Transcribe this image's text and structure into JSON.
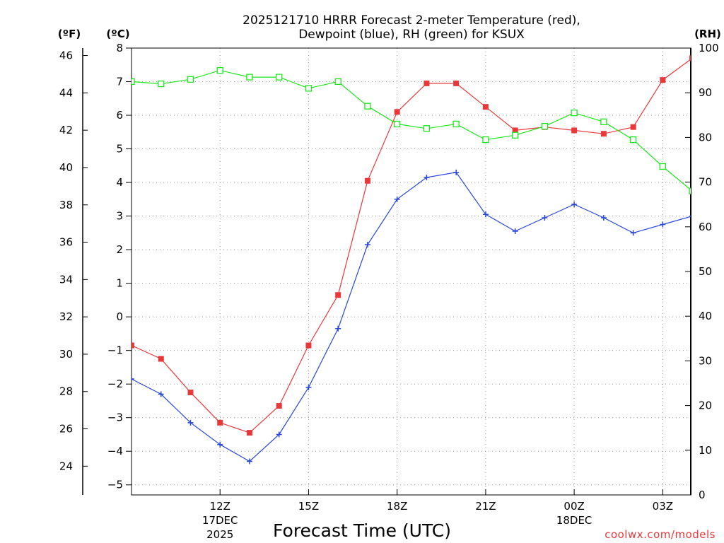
{
  "chart_data": {
    "type": "line",
    "title_line1": "2025121710 HRRR Forecast 2-meter Temperature (red),",
    "title_line2": "Dewpoint (blue), RH (green) for KSUX",
    "xlabel": "Forecast Time (UTC)",
    "unit_f": "(ºF)",
    "unit_c": "(ºC)",
    "unit_rh": "(RH)",
    "credit": "coolwx.com/models",
    "x_range": [
      9,
      27.95
    ],
    "y_c_range": [
      -5.3,
      8
    ],
    "y_rh_range": [
      0,
      100
    ],
    "c_ticks": [
      -5,
      -4,
      -3,
      -2,
      -1,
      0,
      1,
      2,
      3,
      4,
      5,
      6,
      7,
      8
    ],
    "c_tick_labels": [
      "−5",
      "−4",
      "−3",
      "−2",
      "−1",
      "0",
      "1",
      "2",
      "3",
      "4",
      "5",
      "6",
      "7",
      "8"
    ],
    "f_ticks": [
      24,
      26,
      28,
      30,
      32,
      34,
      36,
      38,
      40,
      42,
      44,
      46
    ],
    "f_tick_labels": [
      "24",
      "26",
      "28",
      "30",
      "32",
      "34",
      "36",
      "38",
      "40",
      "42",
      "44",
      "46"
    ],
    "rh_ticks": [
      0,
      10,
      20,
      30,
      40,
      50,
      60,
      70,
      80,
      90,
      100
    ],
    "rh_tick_labels": [
      "0",
      "10",
      "20",
      "30",
      "40",
      "50",
      "60",
      "70",
      "80",
      "90",
      "100"
    ],
    "x_ticks": [
      {
        "hour": 12,
        "label": "12Z",
        "sub1": "17DEC",
        "sub2": "2025"
      },
      {
        "hour": 15,
        "label": "15Z",
        "sub1": "",
        "sub2": ""
      },
      {
        "hour": 18,
        "label": "18Z",
        "sub1": "",
        "sub2": ""
      },
      {
        "hour": 21,
        "label": "21Z",
        "sub1": "",
        "sub2": ""
      },
      {
        "hour": 24,
        "label": "00Z",
        "sub1": "18DEC",
        "sub2": ""
      },
      {
        "hour": 27,
        "label": "03Z",
        "sub1": "",
        "sub2": ""
      }
    ],
    "grid": true,
    "hours": [
      9,
      10,
      11,
      12,
      13,
      14,
      15,
      16,
      17,
      18,
      19,
      20,
      21,
      22,
      23,
      24,
      25,
      26,
      27,
      28
    ],
    "series": [
      {
        "name": "Temperature",
        "unit": "C",
        "color": "#e8383a",
        "marker": "filled-square",
        "values": [
          -0.85,
          -1.25,
          -2.25,
          -3.15,
          -3.45,
          -2.65,
          -0.85,
          0.65,
          4.05,
          6.1,
          6.95,
          6.95,
          6.25,
          5.55,
          5.65,
          5.55,
          5.45,
          5.65,
          7.05,
          7.7
        ]
      },
      {
        "name": "Dewpoint",
        "unit": "C",
        "color": "#2845dc",
        "marker": "plus",
        "values": [
          -1.85,
          -2.3,
          -3.15,
          -3.8,
          -4.3,
          -3.5,
          -2.1,
          -0.35,
          2.15,
          3.5,
          4.15,
          4.3,
          3.05,
          2.55,
          2.95,
          3.35,
          2.95,
          2.5,
          2.75,
          3.0
        ]
      },
      {
        "name": "RH",
        "unit": "%",
        "color": "#1ee61e",
        "marker": "open-square",
        "values": [
          92.5,
          92,
          93,
          95,
          93.5,
          93.5,
          91,
          92.5,
          87,
          83,
          82,
          83,
          79.5,
          80.5,
          82.5,
          85.5,
          83.5,
          79.5,
          73.5,
          68
        ]
      }
    ]
  }
}
